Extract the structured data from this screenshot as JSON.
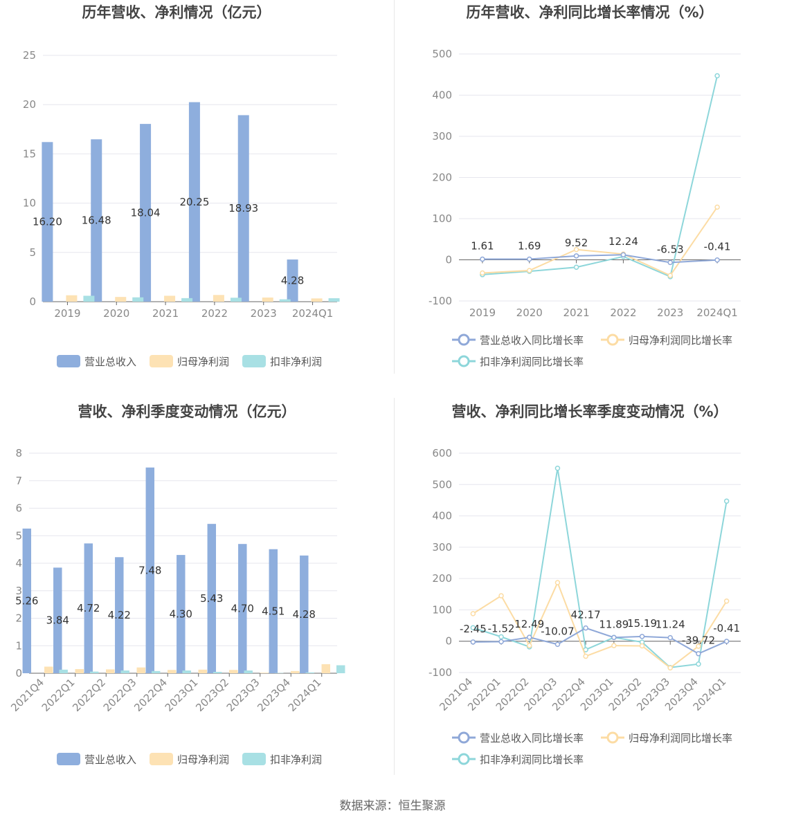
{
  "colors": {
    "revenue": "#8eaedd",
    "net_profit": "#fde2b4",
    "deducted_profit": "#a8e0e4",
    "revenue_line": "#8fa8d8",
    "net_profit_line": "#fcdca4",
    "deducted_profit_line": "#8dd6da",
    "grid": "#e6e6ee",
    "axis": "#666666"
  },
  "footer": {
    "source": "数据来源：恒生聚源"
  },
  "chart_data": [
    {
      "id": "annual-amount",
      "type": "bar",
      "title": "历年营收、净利情况（亿元）",
      "categories": [
        "2019",
        "2020",
        "2021",
        "2022",
        "2023",
        "2024Q1"
      ],
      "ylim": [
        0,
        25
      ],
      "yticks": [
        0,
        5,
        10,
        15,
        20,
        25
      ],
      "grid": true,
      "legend_position": "bottom",
      "series": [
        {
          "name": "营业总收入",
          "values": [
            16.2,
            16.48,
            18.04,
            20.25,
            18.93,
            4.28
          ],
          "labels": [
            "16.20",
            "16.48",
            "18.04",
            "20.25",
            "18.93",
            "4.28"
          ]
        },
        {
          "name": "归母净利润",
          "values": [
            0.65,
            0.48,
            0.6,
            0.68,
            0.42,
            0.33
          ]
        },
        {
          "name": "扣非净利润",
          "values": [
            0.6,
            0.44,
            0.36,
            0.4,
            0.24,
            0.35
          ]
        }
      ]
    },
    {
      "id": "annual-growth",
      "type": "line",
      "title": "历年营收、净利同比增长率情况（%）",
      "categories": [
        "2019",
        "2020",
        "2021",
        "2022",
        "2023",
        "2024Q1"
      ],
      "ylim": [
        -100,
        500
      ],
      "yticks": [
        -100,
        0,
        100,
        200,
        300,
        400,
        500
      ],
      "grid": true,
      "legend_position": "bottom",
      "series": [
        {
          "name": "营业总收入同比增长率",
          "values": [
            1.61,
            1.69,
            9.52,
            12.24,
            -6.53,
            -0.41
          ],
          "labels": [
            "1.61",
            "1.69",
            "9.52",
            "12.24",
            "-6.53",
            "-0.41"
          ]
        },
        {
          "name": "归母净利润同比增长率",
          "values": [
            -32,
            -26,
            25,
            14,
            -38,
            128
          ]
        },
        {
          "name": "扣非净利润同比增长率",
          "values": [
            -36,
            -28,
            -18,
            8,
            -41,
            447
          ]
        }
      ]
    },
    {
      "id": "quarterly-amount",
      "type": "bar",
      "title": "营收、净利季度变动情况（亿元）",
      "categories": [
        "2021Q4",
        "2022Q1",
        "2022Q2",
        "2022Q3",
        "2022Q4",
        "2023Q1",
        "2023Q2",
        "2023Q3",
        "2023Q4",
        "2024Q1"
      ],
      "ylim": [
        0,
        8
      ],
      "yticks": [
        0,
        1,
        2,
        3,
        4,
        5,
        6,
        7,
        8
      ],
      "grid": true,
      "legend_position": "bottom",
      "series": [
        {
          "name": "营业总收入",
          "values": [
            5.26,
            3.84,
            4.72,
            4.22,
            7.48,
            4.3,
            5.43,
            4.7,
            4.51,
            4.28
          ],
          "labels": [
            "5.26",
            "3.84",
            "4.72",
            "4.22",
            "7.48",
            "4.30",
            "5.43",
            "4.70",
            "4.51",
            "4.28"
          ]
        },
        {
          "name": "归母净利润",
          "values": [
            0.24,
            0.15,
            0.14,
            0.21,
            0.12,
            0.13,
            0.12,
            0.02,
            0.08,
            0.33
          ]
        },
        {
          "name": "扣非净利润",
          "values": [
            0.13,
            0.06,
            0.1,
            0.08,
            0.1,
            0.05,
            0.1,
            0.01,
            0.03,
            0.29
          ]
        }
      ]
    },
    {
      "id": "quarterly-growth",
      "type": "line",
      "title": "营收、净利同比增长率季度变动情况（%）",
      "categories": [
        "2021Q4",
        "2022Q1",
        "2022Q2",
        "2022Q3",
        "2022Q4",
        "2023Q1",
        "2023Q2",
        "2023Q3",
        "2023Q4",
        "2024Q1"
      ],
      "ylim": [
        -100,
        600
      ],
      "yticks": [
        -100,
        0,
        100,
        200,
        300,
        400,
        500,
        600
      ],
      "grid": true,
      "legend_position": "bottom",
      "series": [
        {
          "name": "营业总收入同比增长率",
          "values": [
            -2.45,
            -1.52,
            12.49,
            -10.07,
            42.17,
            11.89,
            15.19,
            11.24,
            -39.72,
            -0.41
          ],
          "labels": [
            "-2.45",
            "-1.52",
            "12.49",
            "-10.07",
            "42.17",
            "11.89",
            "15.19",
            "11.24",
            "-39.72",
            "-0.41"
          ]
        },
        {
          "name": "归母净利润同比增长率",
          "values": [
            88,
            145,
            -14,
            187,
            -48,
            -14,
            -15,
            -85,
            -16,
            128
          ]
        },
        {
          "name": "扣非净利润同比增长率",
          "values": [
            43,
            14,
            -18,
            552,
            -27,
            12,
            -3,
            -84,
            -73,
            447
          ]
        }
      ]
    }
  ]
}
